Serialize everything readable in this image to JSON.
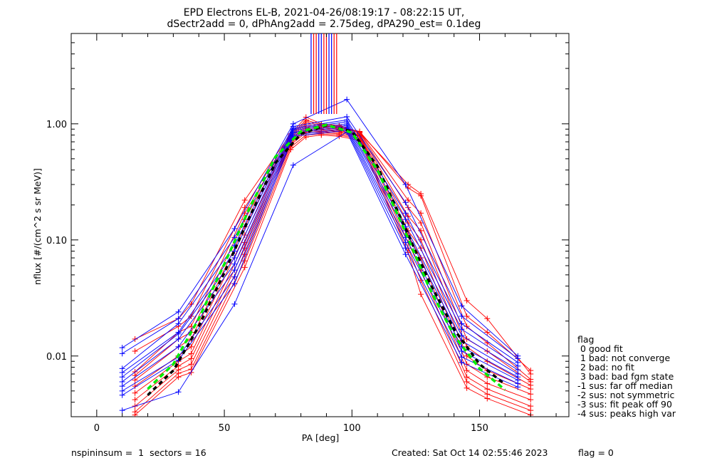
{
  "figure": {
    "title_line1": "EPD Electrons EL-B, 2021-04-26/08:19:17 - 08:22:15 UT,",
    "title_line2": "dSectr2add = 0, dPhAng2add = 2.75deg, dPA290_est=   0.1deg",
    "footer_left": "nspininsum =  1  sectors = 16",
    "footer_mid": "Created: Sat Oct 14 02:55:46 2023",
    "footer_right": "flag = 0"
  },
  "legend": {
    "title": "flag",
    "items": [
      " 0 good fit",
      " 1 bad: not converge",
      " 2 bad: no fit",
      " 3 bad: bad fgm state",
      "-1 sus: far off median",
      "-2 sus: not symmetric",
      "-3 sus: fit peak off 90",
      "-4 sus: peaks high var"
    ]
  },
  "chart_data": {
    "type": "line",
    "xlabel": "PA [deg]",
    "ylabel": "nflux [#/(cm^2 s sr MeV)]",
    "xlim": [
      -10,
      185
    ],
    "ylim": [
      0.003,
      6
    ],
    "yscale": "log",
    "x_ticks": [
      0,
      50,
      100,
      150
    ],
    "x_tick_labels": [
      "0",
      "50",
      "100",
      "150"
    ],
    "y_ticks": [
      0.01,
      0.1,
      1.0
    ],
    "y_tick_labels": [
      "0.01",
      "0.10",
      "1.00"
    ],
    "colors": {
      "red": "#ff0000",
      "blue": "#0000ff",
      "green": "#00ee00",
      "black": "#000000"
    },
    "series": [
      {
        "color": "red",
        "x": [
          15,
          32,
          37,
          58,
          76,
          82,
          88,
          95,
          103,
          122,
          127,
          145,
          153,
          170
        ],
        "y": [
          0.014,
          0.021,
          0.028,
          0.22,
          0.82,
          1.14,
          1.0,
          0.97,
          0.84,
          0.3,
          0.25,
          0.03,
          0.021,
          0.007
        ]
      },
      {
        "color": "red",
        "x": [
          15,
          32,
          37,
          58,
          76,
          82,
          88,
          95,
          103,
          122,
          127,
          145,
          153,
          170
        ],
        "y": [
          0.011,
          0.018,
          0.022,
          0.19,
          0.8,
          1.08,
          0.98,
          0.95,
          0.86,
          0.28,
          0.24,
          0.022,
          0.016,
          0.0075
        ]
      },
      {
        "color": "red",
        "x": [
          15,
          32,
          37,
          58,
          76,
          82,
          88,
          95,
          103,
          122,
          127,
          145,
          153,
          170
        ],
        "y": [
          0.0073,
          0.016,
          0.018,
          0.17,
          0.78,
          1.04,
          0.96,
          0.93,
          0.85,
          0.22,
          0.17,
          0.018,
          0.013,
          0.0063
        ]
      },
      {
        "color": "red",
        "x": [
          15,
          32,
          37,
          58,
          76,
          82,
          88,
          95,
          103,
          122,
          127,
          145,
          153,
          170
        ],
        "y": [
          0.0068,
          0.014,
          0.016,
          0.15,
          0.76,
          1.0,
          0.94,
          0.92,
          0.84,
          0.19,
          0.14,
          0.014,
          0.011,
          0.006
        ]
      },
      {
        "color": "red",
        "x": [
          15,
          32,
          37,
          58,
          76,
          82,
          88,
          95,
          103,
          122,
          127,
          145,
          153,
          170
        ],
        "y": [
          0.0062,
          0.012,
          0.014,
          0.13,
          0.74,
          0.96,
          0.92,
          0.9,
          0.82,
          0.16,
          0.12,
          0.012,
          0.009,
          0.0056
        ]
      },
      {
        "color": "red",
        "x": [
          15,
          32,
          37,
          58,
          76,
          82,
          88,
          95,
          103,
          122,
          127,
          145,
          153,
          170
        ],
        "y": [
          0.0055,
          0.01,
          0.012,
          0.11,
          0.72,
          0.93,
          0.9,
          0.88,
          0.8,
          0.14,
          0.1,
          0.01,
          0.0075,
          0.0052
        ]
      },
      {
        "color": "red",
        "x": [
          15,
          32,
          37,
          58,
          76,
          82,
          88,
          95,
          103,
          122,
          127,
          145,
          153,
          170
        ],
        "y": [
          0.0048,
          0.009,
          0.0105,
          0.095,
          0.7,
          0.9,
          0.88,
          0.86,
          0.79,
          0.12,
          0.085,
          0.0085,
          0.0066,
          0.0047
        ]
      },
      {
        "color": "red",
        "x": [
          15,
          32,
          37,
          58,
          76,
          82,
          88,
          95,
          103,
          122,
          127,
          145,
          153,
          170
        ],
        "y": [
          0.0042,
          0.0082,
          0.0095,
          0.085,
          0.68,
          0.87,
          0.86,
          0.84,
          0.78,
          0.11,
          0.07,
          0.0075,
          0.0058,
          0.0042
        ]
      },
      {
        "color": "red",
        "x": [
          15,
          32,
          37,
          58,
          76,
          82,
          88,
          95,
          103,
          122,
          127,
          145,
          153,
          170
        ],
        "y": [
          0.0037,
          0.0076,
          0.0085,
          0.075,
          0.66,
          0.84,
          0.84,
          0.82,
          0.76,
          0.095,
          0.055,
          0.0066,
          0.0052,
          0.0037
        ]
      },
      {
        "color": "red",
        "x": [
          15,
          32,
          37,
          58,
          76,
          82,
          88,
          95,
          103,
          122,
          127,
          145,
          153,
          170
        ],
        "y": [
          0.0033,
          0.0071,
          0.0077,
          0.066,
          0.63,
          0.8,
          0.82,
          0.8,
          0.74,
          0.085,
          0.045,
          0.006,
          0.0047,
          0.0034
        ]
      },
      {
        "color": "red",
        "x": [
          15,
          32,
          37,
          58,
          76,
          82,
          88,
          95,
          103,
          122,
          127,
          145,
          153,
          170
        ],
        "y": [
          0.0031,
          0.0066,
          0.0072,
          0.058,
          0.6,
          0.77,
          0.8,
          0.78,
          0.72,
          0.078,
          0.034,
          0.0053,
          0.0043,
          0.0031
        ]
      },
      {
        "color": "blue",
        "x": [
          10,
          32,
          54,
          77,
          98,
          121,
          143,
          165
        ],
        "y": [
          0.0118,
          0.024,
          0.125,
          1.0,
          1.62,
          0.3,
          0.027,
          0.01
        ]
      },
      {
        "color": "blue",
        "x": [
          10,
          32,
          54,
          77,
          98,
          121,
          143,
          165
        ],
        "y": [
          0.0105,
          0.021,
          0.105,
          0.95,
          1.15,
          0.21,
          0.022,
          0.0095
        ]
      },
      {
        "color": "blue",
        "x": [
          10,
          32,
          54,
          77,
          98,
          121,
          143,
          165
        ],
        "y": [
          0.0078,
          0.019,
          0.09,
          0.92,
          1.08,
          0.17,
          0.019,
          0.0088
        ]
      },
      {
        "color": "blue",
        "x": [
          10,
          32,
          54,
          77,
          98,
          121,
          143,
          165
        ],
        "y": [
          0.0072,
          0.016,
          0.08,
          0.9,
          1.04,
          0.15,
          0.017,
          0.0082
        ]
      },
      {
        "color": "blue",
        "x": [
          10,
          32,
          54,
          77,
          98,
          121,
          143,
          165
        ],
        "y": [
          0.0066,
          0.0155,
          0.07,
          0.88,
          1.0,
          0.13,
          0.015,
          0.0076
        ]
      },
      {
        "color": "blue",
        "x": [
          10,
          32,
          54,
          77,
          98,
          121,
          143,
          165
        ],
        "y": [
          0.006,
          0.014,
          0.062,
          0.85,
          0.97,
          0.12,
          0.0135,
          0.007
        ]
      },
      {
        "color": "blue",
        "x": [
          10,
          32,
          54,
          77,
          98,
          121,
          143,
          165
        ],
        "y": [
          0.0055,
          0.012,
          0.055,
          0.83,
          0.94,
          0.105,
          0.012,
          0.0066
        ]
      },
      {
        "color": "blue",
        "x": [
          10,
          32,
          54,
          77,
          98,
          121,
          143,
          165
        ],
        "y": [
          0.005,
          0.0098,
          0.048,
          0.8,
          0.91,
          0.095,
          0.011,
          0.0062
        ]
      },
      {
        "color": "blue",
        "x": [
          10,
          32,
          54,
          77,
          98,
          121,
          143,
          165
        ],
        "y": [
          0.0046,
          0.0092,
          0.042,
          0.78,
          0.88,
          0.085,
          0.0098,
          0.0058
        ]
      },
      {
        "color": "blue",
        "x": [
          10,
          32,
          54,
          77,
          98,
          121,
          143,
          165
        ],
        "y": [
          0.0034,
          0.0049,
          0.028,
          0.44,
          0.85,
          0.075,
          0.0088,
          0.0054
        ]
      }
    ],
    "median_fit": {
      "color": "black",
      "x": [
        20,
        30,
        40,
        50,
        60,
        70,
        80,
        90,
        100,
        110,
        120,
        130,
        140,
        150,
        160
      ],
      "y": [
        0.0046,
        0.0075,
        0.018,
        0.052,
        0.16,
        0.46,
        0.82,
        0.97,
        0.86,
        0.43,
        0.14,
        0.045,
        0.017,
        0.0085,
        0.0057
      ]
    },
    "gaussian_fit": {
      "color": "green",
      "x": [
        20,
        30,
        40,
        50,
        60,
        70,
        80,
        90,
        100,
        110,
        120,
        130,
        140,
        150,
        160
      ],
      "y": [
        0.0052,
        0.0085,
        0.021,
        0.062,
        0.19,
        0.52,
        0.86,
        0.98,
        0.84,
        0.4,
        0.13,
        0.04,
        0.015,
        0.0078,
        0.0051
      ]
    },
    "bars": [
      {
        "color": "red",
        "x": [
          85,
          86,
          89,
          90,
          93,
          94
        ]
      },
      {
        "color": "blue",
        "x": [
          84,
          87,
          88,
          91,
          92
        ]
      }
    ]
  }
}
